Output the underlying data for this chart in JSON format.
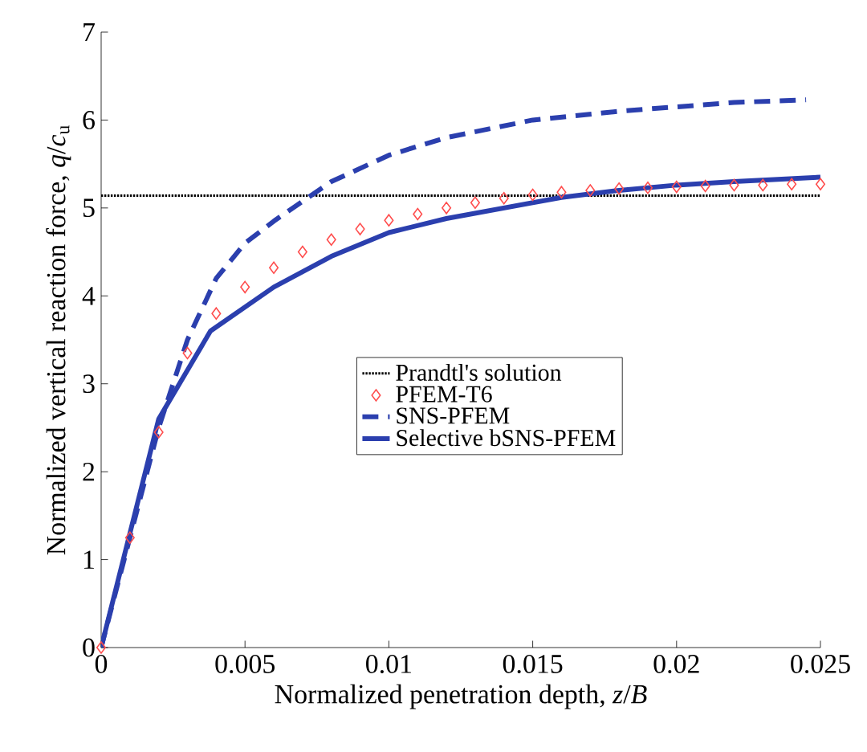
{
  "chart_data": {
    "type": "line",
    "xlabel": "Normalized penetration depth, *z*/*B*",
    "ylabel": "Normalized vertical reaction force, *q*/*c*$_{u}$",
    "xlim": [
      0,
      0.025
    ],
    "ylim": [
      0,
      7
    ],
    "xticks": [
      0,
      0.005,
      0.01,
      0.015,
      0.02,
      0.025
    ],
    "yticks": [
      0,
      1,
      2,
      3,
      4,
      5,
      6,
      7
    ],
    "grid": false,
    "legend": "right",
    "series": [
      {
        "name": "Prandtl's solution",
        "color": "#000000",
        "line_style": "dotted",
        "x": [
          0,
          0.025
        ],
        "values": [
          5.14,
          5.14
        ]
      },
      {
        "name": "PFEM-T6",
        "type": "scatter",
        "color": "#ff4d4d",
        "marker": "diamond",
        "x": [
          0,
          0.001,
          0.002,
          0.003,
          0.004,
          0.005,
          0.006,
          0.007,
          0.008,
          0.009,
          0.01,
          0.011,
          0.012,
          0.013,
          0.014,
          0.015,
          0.016,
          0.017,
          0.018,
          0.019,
          0.02,
          0.021,
          0.022,
          0.023,
          0.024,
          0.025
        ],
        "values": [
          0,
          1.25,
          2.45,
          3.35,
          3.8,
          4.1,
          4.32,
          4.5,
          4.64,
          4.76,
          4.86,
          4.93,
          5.0,
          5.06,
          5.11,
          5.15,
          5.18,
          5.2,
          5.22,
          5.23,
          5.24,
          5.25,
          5.26,
          5.26,
          5.27,
          5.27
        ]
      },
      {
        "name": "SNS-PFEM",
        "color": "#2b3fae",
        "line_style": "dashed",
        "x": [
          0,
          0.002,
          0.003,
          0.004,
          0.005,
          0.006,
          0.008,
          0.01,
          0.012,
          0.015,
          0.018,
          0.02,
          0.022,
          0.0245
        ],
        "values": [
          0,
          2.5,
          3.5,
          4.2,
          4.6,
          4.85,
          5.3,
          5.6,
          5.8,
          6.0,
          6.1,
          6.15,
          6.2,
          6.23
        ]
      },
      {
        "name": "Selective bSNS-PFEM",
        "color": "#2b3fae",
        "line_style": "solid",
        "x": [
          0,
          0.002,
          0.0038,
          0.006,
          0.008,
          0.01,
          0.012,
          0.014,
          0.016,
          0.018,
          0.02,
          0.022,
          0.025
        ],
        "values": [
          0,
          2.6,
          3.6,
          4.1,
          4.45,
          4.72,
          4.88,
          5.0,
          5.12,
          5.2,
          5.26,
          5.3,
          5.35
        ]
      }
    ]
  }
}
